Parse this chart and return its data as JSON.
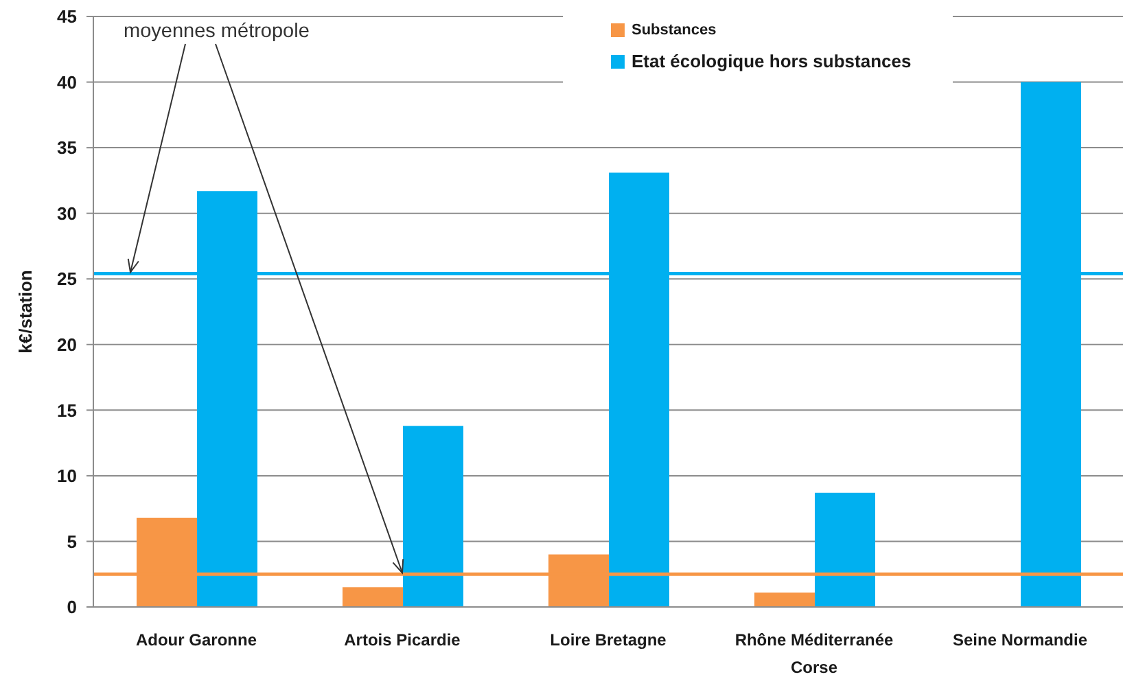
{
  "chart_data": {
    "type": "bar",
    "ylabel": "k€/station",
    "categories": [
      "Adour Garonne",
      "Artois Picardie",
      "Loire Bretagne",
      "Rhône Méditerranée Corse",
      "Seine Normandie"
    ],
    "series": [
      {
        "name": "Substances",
        "color": "#f79646",
        "values": [
          6.8,
          1.5,
          4.0,
          1.1,
          null
        ]
      },
      {
        "name": "Etat écologique hors substances",
        "color": "#00b0f0",
        "values": [
          31.7,
          13.8,
          33.1,
          8.7,
          40.0
        ]
      }
    ],
    "ylim": [
      0,
      45
    ],
    "yticks": [
      0,
      5,
      10,
      15,
      20,
      25,
      30,
      35,
      40,
      45
    ],
    "grid": "y",
    "legend": "top",
    "ref_lines": [
      {
        "axis": "y",
        "value": 25.4,
        "color": "#00b0f0"
      },
      {
        "axis": "y",
        "value": 2.5,
        "color": "#f79646"
      }
    ],
    "annotations": [
      {
        "text": "moyennes métropole",
        "x": "Artois Picardie",
        "y": 2.5
      }
    ]
  }
}
